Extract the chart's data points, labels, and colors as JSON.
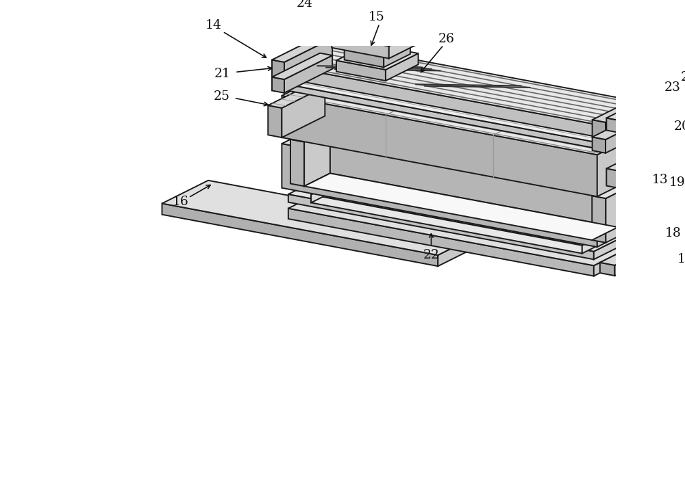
{
  "bg": "#ffffff",
  "lc": "#1a1a1a",
  "lw": 1.4,
  "fc_top": "#e8e8e8",
  "fc_front": "#b8b8b8",
  "fc_side": "#cccccc",
  "fc_inner": "#f2f2f2",
  "fc_dark": "#a0a0a0",
  "stripe": "#555555"
}
